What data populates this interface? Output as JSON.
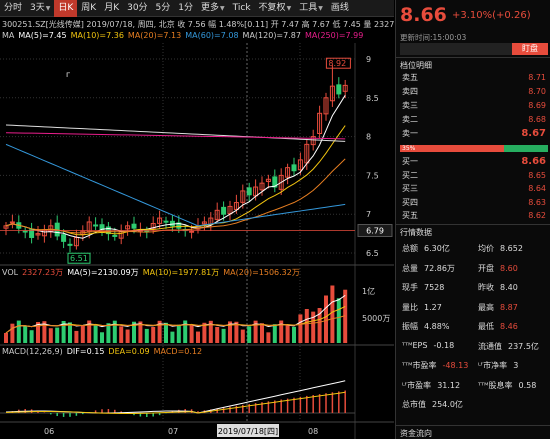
{
  "toolbar": {
    "items": [
      {
        "label": "分时",
        "active": false,
        "caret": false
      },
      {
        "label": "3天",
        "active": false,
        "caret": true
      },
      {
        "label": "日K",
        "active": true,
        "caret": false
      },
      {
        "label": "周K",
        "active": false,
        "caret": false
      },
      {
        "label": "月K",
        "active": false,
        "caret": false
      },
      {
        "label": "30分",
        "active": false,
        "caret": false
      },
      {
        "label": "5分",
        "active": false,
        "caret": false
      },
      {
        "label": "1分",
        "active": false,
        "caret": false
      },
      {
        "label": "更多",
        "active": false,
        "caret": true
      },
      {
        "label": "Tick",
        "active": false,
        "caret": false
      },
      {
        "label": "不复权",
        "active": false,
        "caret": true
      },
      {
        "label": "工具",
        "active": false,
        "caret": true
      },
      {
        "label": "画线",
        "active": false,
        "caret": false
      }
    ]
  },
  "quote_line": "300251.SZ[光线传媒]  2019/07/18, 周四, 北京  收 7.56  幅 1.48%[0.11]  开 7.47  高 7.67  低 7.45  量 2327.23万",
  "ma_line": [
    {
      "text": "MA",
      "color": "#cccccc"
    },
    {
      "text": "MA(5)=7.45",
      "color": "#ffffff"
    },
    {
      "text": "MA(10)=7.36",
      "color": "#f1c40f"
    },
    {
      "text": "MA(20)=7.13",
      "color": "#e67e22"
    },
    {
      "text": "MA(60)=7.08",
      "color": "#3498db"
    },
    {
      "text": "MA(120)=7.87",
      "color": "#cccccc"
    },
    {
      "text": "MA(250)=7.99",
      "color": "#e91e8c"
    }
  ],
  "price_axis": [
    "9",
    "8.5",
    "8",
    "7.5",
    "7",
    "6.5"
  ],
  "current_price_tag": "6.79",
  "high_marker": "8.92",
  "low_marker": "6.51",
  "vol_line": [
    {
      "text": "VOL",
      "color": "#cccccc"
    },
    {
      "text": "2327.23万",
      "color": "#e74c3c"
    },
    {
      "text": "MA(5)=2130.09万",
      "color": "#ffffff"
    },
    {
      "text": "MA(10)=1977.81万",
      "color": "#f1c40f"
    },
    {
      "text": "MA(20)=1506.32万",
      "color": "#e67e22"
    }
  ],
  "vol_axis": [
    "1亿",
    "5000万"
  ],
  "macd_line": [
    {
      "text": "MACD(12,26,9)",
      "color": "#cccccc"
    },
    {
      "text": "DIF=0.15",
      "color": "#ffffff"
    },
    {
      "text": "DEA=0.09",
      "color": "#f1c40f"
    },
    {
      "text": "MACD=0.12",
      "color": "#e67e22"
    }
  ],
  "date_axis": [
    "06",
    "07",
    "08"
  ],
  "crosshair_date": "2019/07/18[四]",
  "quote": {
    "price": "8.66",
    "change": "+3.10%(+0.26)",
    "update_time": "更新时间:15:00:03",
    "tab_label": "盯盘",
    "orderbook_title": "档位明细",
    "asks": [
      {
        "label": "卖五",
        "price": "8.71"
      },
      {
        "label": "卖四",
        "price": "8.70"
      },
      {
        "label": "卖三",
        "price": "8.69"
      },
      {
        "label": "卖二",
        "price": "8.68"
      },
      {
        "label": "卖一",
        "price": "8.67"
      }
    ],
    "buy_ratio": "35%",
    "bids": [
      {
        "label": "买一",
        "price": "8.66"
      },
      {
        "label": "买二",
        "price": "8.65"
      },
      {
        "label": "买三",
        "price": "8.64"
      },
      {
        "label": "买四",
        "price": "8.63"
      },
      {
        "label": "买五",
        "price": "8.62"
      }
    ],
    "market_title": "行情数据",
    "stats": [
      {
        "label": "总额",
        "value": "6.30亿",
        "color": "#dddddd",
        "label2": "均价",
        "value2": "8.652",
        "color2": "#dddddd"
      },
      {
        "label": "总量",
        "value": "72.86万",
        "color": "#dddddd",
        "label2": "开盘",
        "value2": "8.60",
        "color2": "#e74c3c"
      },
      {
        "label": "现手",
        "value": "7528",
        "color": "#dddddd",
        "label2": "昨收",
        "value2": "8.40",
        "color2": "#dddddd"
      },
      {
        "label": "量比",
        "value": "1.27",
        "color": "#dddddd",
        "label2": "最高",
        "value2": "8.87",
        "color2": "#e74c3c"
      },
      {
        "label": "振幅",
        "value": "4.88%",
        "color": "#dddddd",
        "label2": "最低",
        "value2": "8.46",
        "color2": "#e74c3c"
      },
      {
        "label": "ᵀᵀᴹEPS",
        "value": "-0.18",
        "color": "#dddddd",
        "label2": "流通值",
        "value2": "237.5亿",
        "color2": "#dddddd"
      },
      {
        "label": "ᵀᵀᴹ市盈率",
        "value": "-48.13",
        "color": "#e74c3c",
        "label2": "ᴸᶠ市净率",
        "value2": "3",
        "color2": "#dddddd"
      },
      {
        "label": "ᴸᶠ市盈率",
        "value": "31.12",
        "color": "#dddddd",
        "label2": "ᵀᵀᴹ股息率",
        "value2": "0.58",
        "color2": "#dddddd"
      },
      {
        "label": "总市值",
        "value": "254.0亿",
        "color": "#dddddd",
        "label2": "",
        "value2": "",
        "color2": "#dddddd"
      }
    ],
    "capital_flow_title": "资金流向"
  }
}
